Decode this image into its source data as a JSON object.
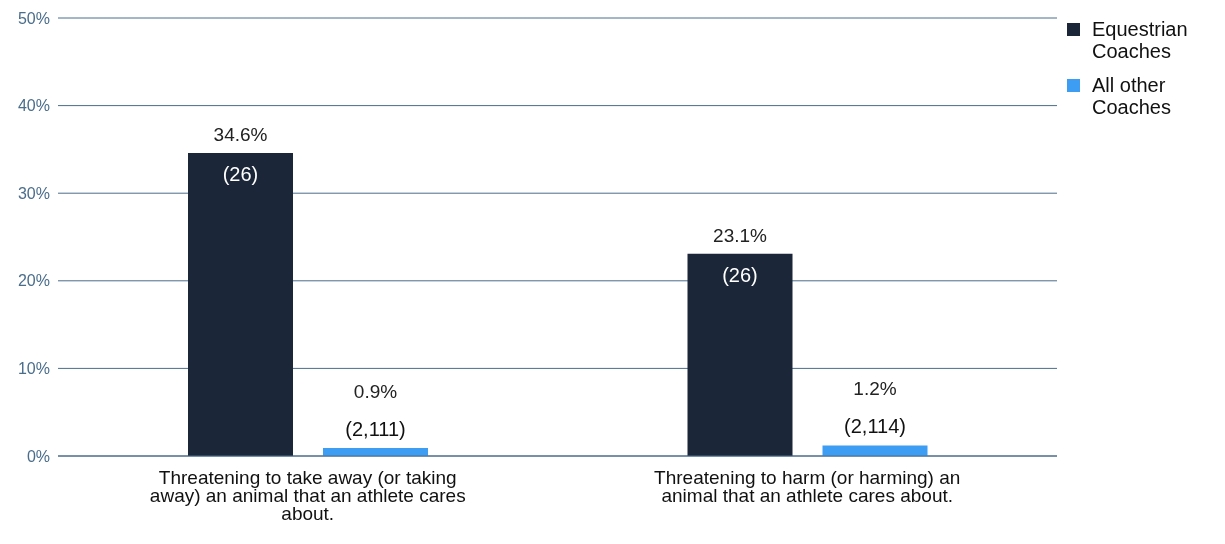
{
  "chart_data": {
    "type": "bar",
    "categories": [
      "Threatening to take away (or taking away) an animal that an athlete cares about.",
      "Threatening to harm (or harming) an animal that an athlete cares about."
    ],
    "series": [
      {
        "name": "Equestrian Coaches",
        "color": "#1b2638",
        "values": [
          34.6,
          23.1
        ],
        "value_labels": [
          "34.6%",
          "23.1%"
        ]
      },
      {
        "name": "All other Coaches",
        "color": "#3d9df3",
        "values": [
          0.9,
          1.2
        ],
        "value_labels": [
          "0.9%",
          "1.2%"
        ]
      }
    ],
    "annotations": [
      "(26)",
      "(2,111)",
      "(26)",
      "(2,114)"
    ],
    "ylim": [
      0,
      50
    ],
    "yticks": [
      {
        "value": 0,
        "label": "0%"
      },
      {
        "value": 10,
        "label": "10%"
      },
      {
        "value": 20,
        "label": "20%"
      },
      {
        "value": 30,
        "label": "30%"
      },
      {
        "value": 40,
        "label": "40%"
      },
      {
        "value": 50,
        "label": "50%"
      }
    ],
    "grid": "y",
    "legend": "top right"
  }
}
